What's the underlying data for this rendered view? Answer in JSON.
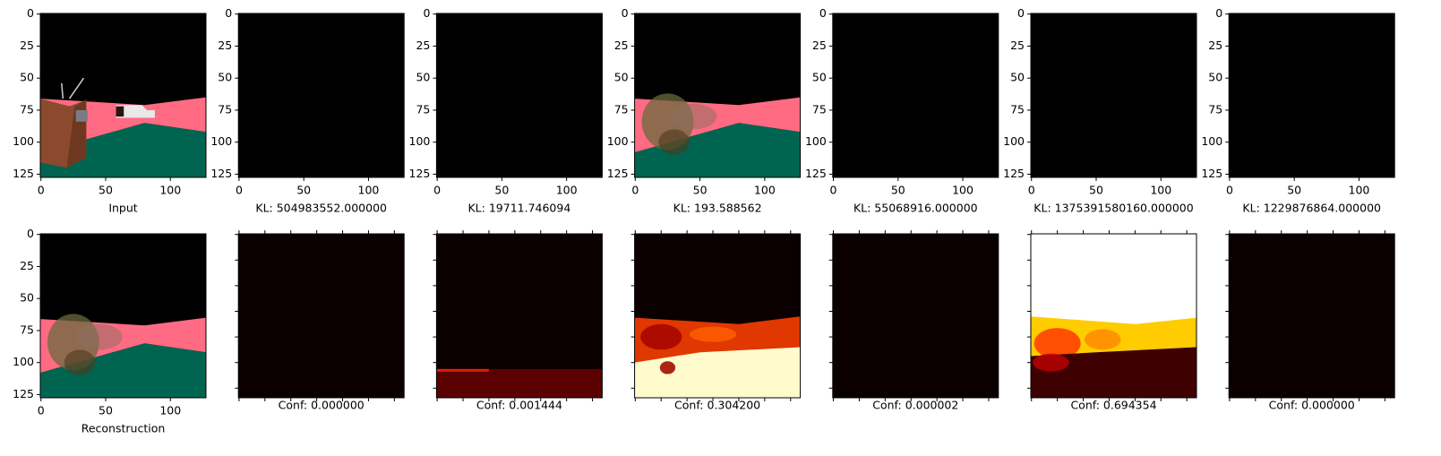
{
  "chart_data": [
    {
      "type": "image",
      "xlabel": "Input",
      "color": "#000000",
      "xlim": [
        -0.5,
        127.5
      ],
      "ylim": [
        127.5,
        -0.5
      ],
      "xticks": [
        0,
        50,
        100
      ],
      "yticks": [
        0,
        25,
        50,
        75,
        100,
        125
      ],
      "tick_labels": true
    },
    {
      "type": "image",
      "xlabel": "KL: 504983552.000000",
      "color": "#000000",
      "xlim": [
        -0.5,
        127.5
      ],
      "ylim": [
        127.5,
        -0.5
      ],
      "xticks": [
        0,
        50,
        100
      ],
      "yticks": [
        0,
        25,
        50,
        75,
        100,
        125
      ],
      "tick_labels": true
    },
    {
      "type": "image",
      "xlabel": "KL: 19711.746094",
      "color": "#000000",
      "xlim": [
        -0.5,
        127.5
      ],
      "ylim": [
        127.5,
        -0.5
      ],
      "xticks": [
        0,
        50,
        100
      ],
      "yticks": [
        0,
        25,
        50,
        75,
        100,
        125
      ],
      "tick_labels": true
    },
    {
      "type": "image",
      "xlabel": "KL: 193.588562",
      "color": "#000000",
      "xlim": [
        -0.5,
        127.5
      ],
      "ylim": [
        127.5,
        -0.5
      ],
      "xticks": [
        0,
        50,
        100
      ],
      "yticks": [
        0,
        25,
        50,
        75,
        100,
        125
      ],
      "tick_labels": true
    },
    {
      "type": "image",
      "xlabel": "KL: 55068916.000000",
      "color": "#000000",
      "xlim": [
        -0.5,
        127.5
      ],
      "ylim": [
        127.5,
        -0.5
      ],
      "xticks": [
        0,
        50,
        100
      ],
      "yticks": [
        0,
        25,
        50,
        75,
        100,
        125
      ],
      "tick_labels": true
    },
    {
      "type": "image",
      "xlabel": "KL: 1375391580160.000000",
      "color": "#000000",
      "xlim": [
        -0.5,
        127.5
      ],
      "ylim": [
        127.5,
        -0.5
      ],
      "xticks": [
        0,
        50,
        100
      ],
      "yticks": [
        0,
        25,
        50,
        75,
        100,
        125
      ],
      "tick_labels": true
    },
    {
      "type": "image",
      "xlabel": "KL: 1229876864.000000",
      "color": "#000000",
      "xlim": [
        -0.5,
        127.5
      ],
      "ylim": [
        127.5,
        -0.5
      ],
      "xticks": [
        0,
        50,
        100
      ],
      "yticks": [
        0,
        25,
        50,
        75,
        100,
        125
      ],
      "tick_labels": true
    },
    {
      "type": "image",
      "xlabel": "Reconstruction",
      "color": "#000000",
      "xlim": [
        -0.5,
        127.5
      ],
      "ylim": [
        127.5,
        -0.5
      ],
      "xticks": [
        0,
        50,
        100
      ],
      "yticks": [
        0,
        25,
        50,
        75,
        100,
        125
      ],
      "tick_labels": true
    },
    {
      "type": "image",
      "xlabel": "Conf: 0.000000",
      "color": "#0b0000",
      "xlim": [
        -0.5,
        127.5
      ],
      "ylim": [
        127.5,
        -0.5
      ],
      "xticks": [
        0,
        20,
        40,
        60,
        80,
        100,
        120
      ],
      "yticks": [
        0,
        20,
        40,
        60,
        80,
        100,
        120
      ],
      "tick_labels": false,
      "ticks_top": true
    },
    {
      "type": "image",
      "xlabel": "Conf: 0.001444",
      "color": "#0b0000",
      "xlim": [
        -0.5,
        127.5
      ],
      "ylim": [
        127.5,
        -0.5
      ],
      "xticks": [
        0,
        20,
        40,
        60,
        80,
        100,
        120
      ],
      "yticks": [
        0,
        20,
        40,
        60,
        80,
        100,
        120
      ],
      "tick_labels": false,
      "ticks_top": true
    },
    {
      "type": "image",
      "xlabel": "Conf: 0.304200",
      "color": "#0b0000",
      "xlim": [
        -0.5,
        127.5
      ],
      "ylim": [
        127.5,
        -0.5
      ],
      "xticks": [
        0,
        20,
        40,
        60,
        80,
        100,
        120
      ],
      "yticks": [
        0,
        20,
        40,
        60,
        80,
        100,
        120
      ],
      "tick_labels": false,
      "ticks_top": true
    },
    {
      "type": "image",
      "xlabel": "Conf: 0.000002",
      "color": "#0b0000",
      "xlim": [
        -0.5,
        127.5
      ],
      "ylim": [
        127.5,
        -0.5
      ],
      "xticks": [
        0,
        20,
        40,
        60,
        80,
        100,
        120
      ],
      "yticks": [
        0,
        20,
        40,
        60,
        80,
        100,
        120
      ],
      "tick_labels": false,
      "ticks_top": true
    },
    {
      "type": "image",
      "xlabel": "Conf: 0.694354",
      "color": "#ffffff",
      "xlim": [
        -0.5,
        127.5
      ],
      "ylim": [
        127.5,
        -0.5
      ],
      "xticks": [
        0,
        20,
        40,
        60,
        80,
        100,
        120
      ],
      "yticks": [
        0,
        20,
        40,
        60,
        80,
        100,
        120
      ],
      "tick_labels": false,
      "ticks_top": true
    },
    {
      "type": "image",
      "xlabel": "Conf: 0.000000",
      "color": "#0b0000",
      "xlim": [
        -0.5,
        127.5
      ],
      "ylim": [
        127.5,
        -0.5
      ],
      "xticks": [
        0,
        20,
        40,
        60,
        80,
        100,
        120
      ],
      "yticks": [
        0,
        20,
        40,
        60,
        80,
        100,
        120
      ],
      "tick_labels": false,
      "ticks_top": true
    }
  ]
}
